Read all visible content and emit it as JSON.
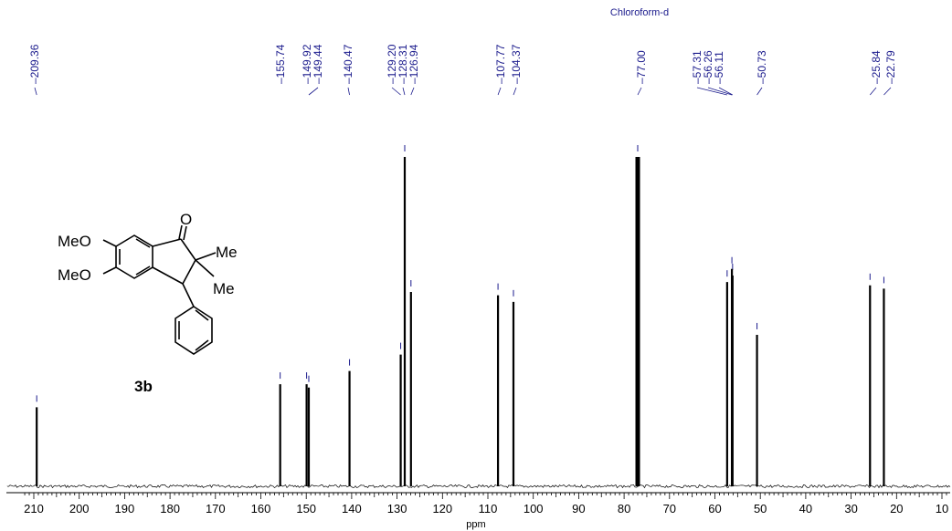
{
  "chart_data": {
    "type": "line",
    "title": "",
    "xlabel": "ppm",
    "ylabel": "",
    "xlim": [
      212,
      9
    ],
    "x_reversed": true,
    "grid": false,
    "x_ticks": [
      210,
      200,
      190,
      180,
      170,
      160,
      150,
      140,
      130,
      120,
      110,
      100,
      90,
      80,
      70,
      60,
      50,
      40,
      30,
      20,
      10
    ],
    "x_tick_labels": [
      "210",
      "200",
      "190",
      "180",
      "170",
      "160",
      "150",
      "140",
      "130",
      "120",
      "110",
      "100",
      "90",
      "80",
      "70",
      "60",
      "50",
      "40",
      "30",
      "20",
      "10"
    ],
    "solvent_label": "Chloroform-d",
    "solvent_shift": 77.0,
    "peak_labels": [
      "209.36",
      "155.74",
      "149.92",
      "149.44",
      "140.47",
      "129.20",
      "128.31",
      "126.94",
      "107.77",
      "104.37",
      "77.00",
      "57.31",
      "56.26",
      "56.11",
      "50.73",
      "25.84",
      "22.79"
    ],
    "peaks": [
      {
        "shift": 209.36,
        "intensity": 0.24
      },
      {
        "shift": 155.74,
        "intensity": 0.31
      },
      {
        "shift": 149.92,
        "intensity": 0.31
      },
      {
        "shift": 149.44,
        "intensity": 0.3
      },
      {
        "shift": 140.47,
        "intensity": 0.35
      },
      {
        "shift": 129.2,
        "intensity": 0.4
      },
      {
        "shift": 128.31,
        "intensity": 1.0
      },
      {
        "shift": 126.94,
        "intensity": 0.59
      },
      {
        "shift": 107.77,
        "intensity": 0.58
      },
      {
        "shift": 104.37,
        "intensity": 0.56
      },
      {
        "shift": 77.0,
        "intensity": 1.0
      },
      {
        "shift": 57.31,
        "intensity": 0.62
      },
      {
        "shift": 56.26,
        "intensity": 0.66
      },
      {
        "shift": 56.11,
        "intensity": 0.64
      },
      {
        "shift": 50.73,
        "intensity": 0.46
      },
      {
        "shift": 25.84,
        "intensity": 0.61
      },
      {
        "shift": 22.79,
        "intensity": 0.6
      }
    ]
  },
  "structure": {
    "compound_label": "3b",
    "substituents": {
      "meo_top": "MeO",
      "meo_bottom": "MeO",
      "me_top": "Me",
      "me_bottom": "Me",
      "carbonyl_o": "O"
    }
  },
  "colors": {
    "label": "#1a1a8c",
    "spectrum": "#000000"
  }
}
